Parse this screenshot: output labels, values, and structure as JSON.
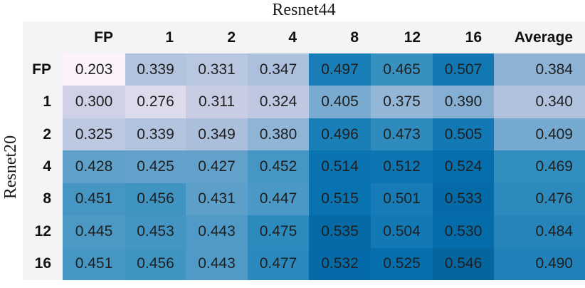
{
  "title": "Resnet44",
  "ylabel": "Resnet20",
  "chart_data": {
    "type": "heatmap",
    "title": "Resnet44",
    "xlabel_group": "Resnet44",
    "ylabel_group": "Resnet20",
    "col_headers": [
      "FP",
      "1",
      "2",
      "4",
      "8",
      "12",
      "16",
      "Average"
    ],
    "row_headers": [
      "FP",
      "1",
      "2",
      "4",
      "8",
      "12",
      "16"
    ],
    "values": [
      [
        "0.203",
        "0.339",
        "0.331",
        "0.347",
        "0.497",
        "0.465",
        "0.507",
        "0.384"
      ],
      [
        "0.300",
        "0.276",
        "0.311",
        "0.324",
        "0.405",
        "0.375",
        "0.390",
        "0.340"
      ],
      [
        "0.325",
        "0.339",
        "0.349",
        "0.380",
        "0.496",
        "0.473",
        "0.505",
        "0.409"
      ],
      [
        "0.428",
        "0.425",
        "0.427",
        "0.452",
        "0.514",
        "0.512",
        "0.524",
        "0.469"
      ],
      [
        "0.451",
        "0.456",
        "0.431",
        "0.447",
        "0.515",
        "0.501",
        "0.533",
        "0.476"
      ],
      [
        "0.445",
        "0.453",
        "0.443",
        "0.475",
        "0.535",
        "0.504",
        "0.530",
        "0.484"
      ],
      [
        "0.451",
        "0.456",
        "0.443",
        "0.477",
        "0.532",
        "0.525",
        "0.546",
        "0.490"
      ]
    ],
    "last_column_is_average": true,
    "colormap": {
      "name": "PuBu",
      "vmin": 0.19,
      "vmax": 0.63,
      "anchors": [
        [
          0.0,
          "#fff7fb"
        ],
        [
          0.125,
          "#ece7f2"
        ],
        [
          0.25,
          "#d0d1e6"
        ],
        [
          0.375,
          "#a6bddb"
        ],
        [
          0.5,
          "#74a9cf"
        ],
        [
          0.625,
          "#3690c0"
        ],
        [
          0.75,
          "#0570b0"
        ],
        [
          0.875,
          "#045a8d"
        ],
        [
          1.0,
          "#023858"
        ]
      ]
    },
    "header_bg": "#f4f4f6",
    "value_text_color": "#1f1f1f",
    "legend": "none",
    "grid": "off"
  }
}
